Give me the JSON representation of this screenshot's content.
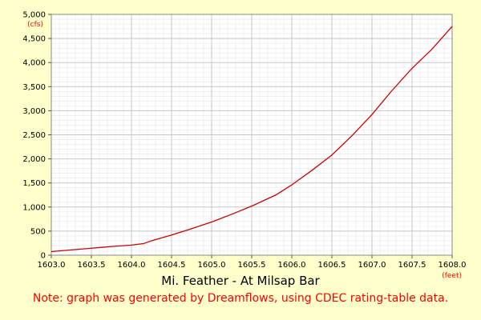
{
  "chart_data": {
    "type": "line",
    "title": "Mi. Feather - At Milsap Bar",
    "note": "Note: graph was generated by Dreamflows, using CDEC rating-table data.",
    "xlabel": "(feet)",
    "ylabel": "(cfs)",
    "xlim": [
      1603.0,
      1608.0
    ],
    "ylim": [
      0,
      5000
    ],
    "x_ticks": [
      1603.0,
      1603.5,
      1604.0,
      1604.5,
      1605.0,
      1605.5,
      1606.0,
      1606.5,
      1607.0,
      1607.5,
      1608.0
    ],
    "x_tick_labels": [
      "1603.0",
      "1603.5",
      "1604.0",
      "1604.5",
      "1605.0",
      "1605.5",
      "1606.0",
      "1606.5",
      "1607.0",
      "1607.5",
      "1608.0"
    ],
    "y_ticks": [
      0,
      500,
      1000,
      1500,
      2000,
      2500,
      3000,
      3500,
      4000,
      4500,
      5000
    ],
    "y_tick_labels": [
      "0",
      "500",
      "1,000",
      "1,500",
      "2,000",
      "2,500",
      "3,000",
      "3,500",
      "4,000",
      "4,500",
      "5,000"
    ],
    "grid": true,
    "line_color": "#cc0000",
    "series": [
      {
        "x": [
          1603.0,
          1603.25,
          1603.5,
          1603.75,
          1604.0,
          1604.15,
          1604.25,
          1604.5,
          1604.75,
          1605.0,
          1605.25,
          1605.5,
          1605.8,
          1606.0,
          1606.25,
          1606.5,
          1606.75,
          1607.0,
          1607.25,
          1607.5,
          1607.75,
          1608.0
        ],
        "y": [
          75,
          110,
          145,
          180,
          210,
          240,
          300,
          420,
          550,
          690,
          850,
          1020,
          1250,
          1460,
          1760,
          2080,
          2480,
          2920,
          3420,
          3880,
          4280,
          4750
        ]
      }
    ]
  },
  "colors": {
    "background": "#ffffcc",
    "plot_background": "#ffffff",
    "major_grid": "#c8c8c8",
    "minor_grid": "#e8e8e8",
    "unit_label": "#ff0000",
    "note_text": "#ff0000"
  }
}
